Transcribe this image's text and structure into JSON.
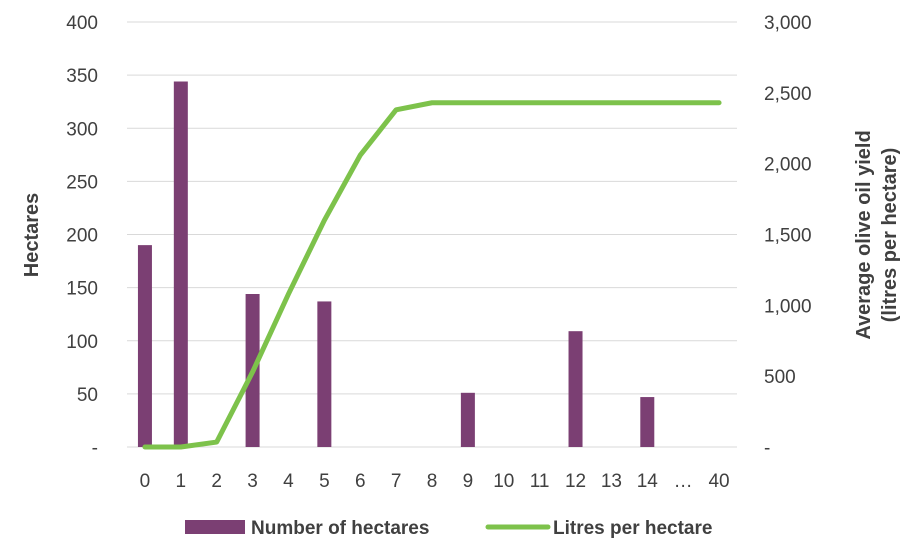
{
  "chart_data": {
    "type": "bar",
    "categories": [
      "0",
      "1",
      "2",
      "3",
      "4",
      "5",
      "6",
      "7",
      "8",
      "9",
      "10",
      "11",
      "12",
      "13",
      "14",
      "…",
      "40"
    ],
    "series": [
      {
        "name": "Number of hectares",
        "type": "bar",
        "axis": "left",
        "color": "#7b3f73",
        "values": [
          190,
          344,
          0,
          144,
          0,
          137,
          0,
          0,
          0,
          51,
          0,
          0,
          109,
          0,
          47,
          0,
          0
        ]
      },
      {
        "name": "Litres per hectare",
        "type": "line",
        "axis": "right",
        "color": "#7dc24b",
        "values": [
          0,
          0,
          35,
          530,
          1080,
          1600,
          2060,
          2380,
          2430,
          2430,
          2430,
          2430,
          2430,
          2430,
          2430,
          2430,
          2430
        ]
      }
    ],
    "ylabel": "Hectares",
    "y2label_line1": "Average olive oil yield",
    "y2label_line2": "(litres per hectare)",
    "ylim": [
      0,
      400
    ],
    "y2lim": [
      0,
      3000
    ],
    "yticks": [
      {
        "value": 0,
        "label": "-"
      },
      {
        "value": 50,
        "label": "50"
      },
      {
        "value": 100,
        "label": "100"
      },
      {
        "value": 150,
        "label": "150"
      },
      {
        "value": 200,
        "label": "200"
      },
      {
        "value": 250,
        "label": "250"
      },
      {
        "value": 300,
        "label": "300"
      },
      {
        "value": 350,
        "label": "350"
      },
      {
        "value": 400,
        "label": "400"
      }
    ],
    "y2ticks": [
      {
        "value": 0,
        "label": "-"
      },
      {
        "value": 500,
        "label": "500"
      },
      {
        "value": 1000,
        "label": "1,000"
      },
      {
        "value": 1500,
        "label": "1,500"
      },
      {
        "value": 2000,
        "label": "2,000"
      },
      {
        "value": 2500,
        "label": "2,500"
      },
      {
        "value": 3000,
        "label": "3,000"
      }
    ],
    "grid": true,
    "legend_position": "bottom"
  }
}
